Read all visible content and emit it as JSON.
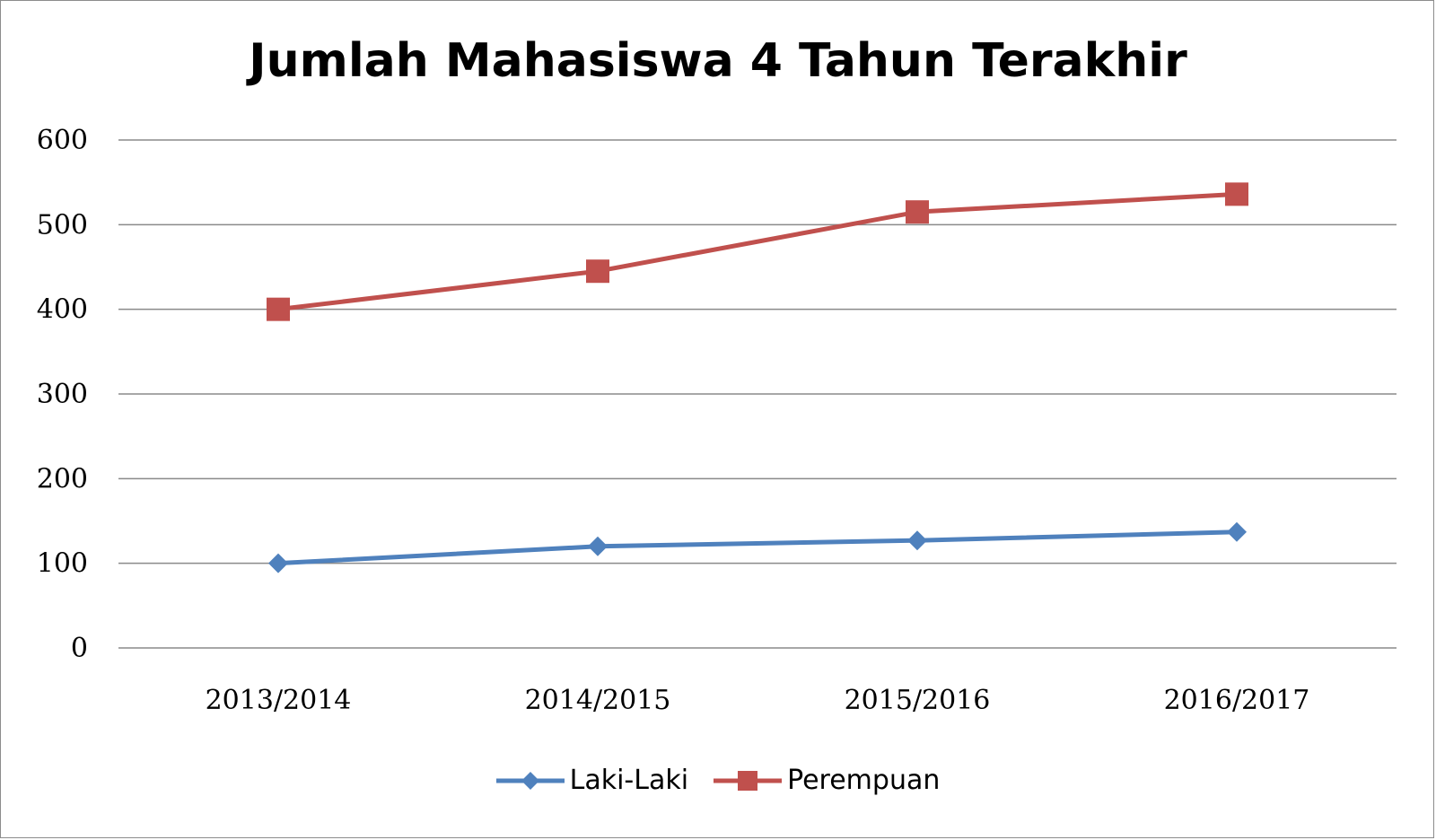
{
  "chart_data": {
    "type": "line",
    "title": "Jumlah Mahasiswa 4 Tahun Terakhir",
    "categories": [
      "2013/2014",
      "2014/2015",
      "2015/2016",
      "2016/2017"
    ],
    "series": [
      {
        "name": "Laki-Laki",
        "values": [
          100,
          120,
          127,
          137
        ],
        "color": "#4f81bd",
        "marker": "diamond"
      },
      {
        "name": "Perempuan",
        "values": [
          400,
          445,
          515,
          536
        ],
        "color": "#c0504d",
        "marker": "square"
      }
    ],
    "ylim": [
      0,
      600
    ],
    "yticks": [
      "0",
      "100",
      "200",
      "300",
      "400",
      "500",
      "600"
    ],
    "grid": true,
    "legend_position": "bottom"
  }
}
